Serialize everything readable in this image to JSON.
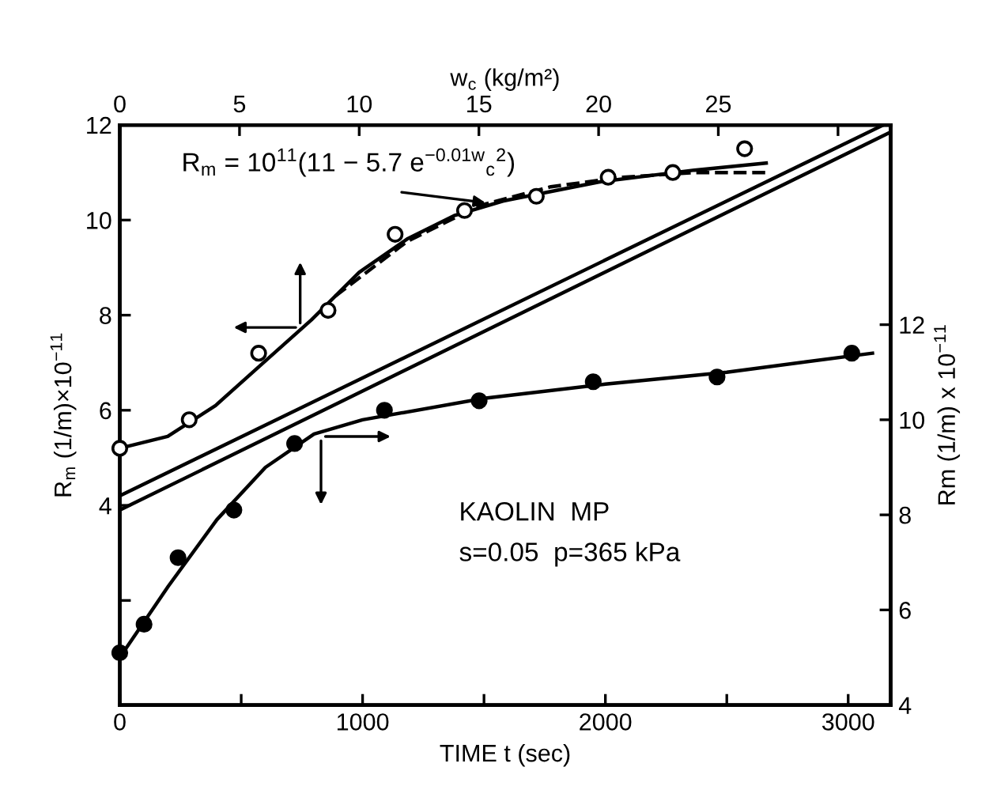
{
  "chart_data": {
    "type": "scatter",
    "xlabel": "TIME t (sec)",
    "x2label": "w$_{c}$ (kg/m²)",
    "ylabel": "R$_{m}$ (1/m)×10$^{−11}$",
    "y2label": "Rm (1/m) x 10$^{−11}$",
    "xlim": [
      0,
      3175
    ],
    "xticks": [
      0,
      {
        "value": 500,
        "label": null
      },
      1000,
      {
        "value": 1500,
        "label": null
      },
      2000,
      {
        "value": 2500,
        "label": null
      },
      3000
    ],
    "x2lim": [
      0,
      32.2
    ],
    "x2ticks": [
      0,
      5,
      10,
      15,
      20,
      25,
      {
        "value": 30,
        "label": null
      }
    ],
    "ylim": [
      -0.2,
      12
    ],
    "yticks": [
      {
        "value": 2,
        "label": null
      },
      4,
      6,
      8,
      10,
      12
    ],
    "y2lim": [
      4,
      16.2
    ],
    "y2ticks": [
      4,
      6,
      8,
      10,
      12
    ],
    "grid": false,
    "series": [
      {
        "axis": "x2",
        "color": "#000000",
        "marker": "circle",
        "x": [
          0,
          2.9,
          5.8,
          8.7,
          11.5,
          14.4,
          17.4,
          20.4,
          23.1,
          26.1
        ],
        "values": [
          5.2,
          5.8,
          7.2,
          8.1,
          9.7,
          10.2,
          10.5,
          10.9,
          11.0,
          11.5
        ]
      },
      {
        "type": "line",
        "axis": "x2",
        "color": "#000000",
        "marker": "none",
        "line_style": "solid",
        "x": [
          0,
          2,
          4,
          6,
          8,
          10,
          12,
          14,
          16,
          20,
          24,
          27
        ],
        "values": [
          5.2,
          5.45,
          6.1,
          7.0,
          7.9,
          8.9,
          9.6,
          10.1,
          10.4,
          10.8,
          11.05,
          11.2
        ]
      },
      {
        "type": "line",
        "axis": "x2",
        "color": "#000000",
        "marker": "none",
        "line_style": "dashed",
        "x": [
          9,
          12,
          15,
          18,
          21,
          24,
          27
        ],
        "values": [
          8.4,
          9.55,
          10.3,
          10.7,
          10.9,
          11.0,
          11.0
        ]
      },
      {
        "axis": "y2",
        "color": "#000000",
        "marker": "circle",
        "x": [
          0,
          100,
          240,
          470,
          720,
          1090,
          1480,
          1950,
          2460,
          3015
        ],
        "values": [
          5.1,
          5.7,
          7.1,
          8.1,
          9.5,
          10.2,
          10.4,
          10.8,
          10.9,
          11.4
        ]
      },
      {
        "type": "line",
        "axis": "y2",
        "color": "#000000",
        "marker": "none",
        "line_style": "solid",
        "x": [
          0,
          200,
          400,
          600,
          800,
          1000,
          1500,
          2000,
          2500,
          3100
        ],
        "values": [
          5.0,
          6.5,
          7.9,
          9.0,
          9.7,
          10.0,
          10.45,
          10.75,
          11.0,
          11.4
        ]
      },
      {
        "type": "line",
        "color": "#000000",
        "marker": "none",
        "line_style": "solid",
        "x": [
          0,
          3145
        ],
        "values": [
          4.2,
          12
        ]
      },
      {
        "type": "line",
        "color": "#000000",
        "marker": "none",
        "line_style": "solid",
        "x": [
          0,
          3175
        ],
        "values": [
          3.9,
          11.85
        ]
      }
    ],
    "annotations": [
      "R$_{m}$ = 10$^{11}$(11 − 5.7 e$^{−0.01w}$$_{c}$$^{2}$)",
      "KAOLIN  MP",
      "s=0.05  p=365 kPa"
    ]
  }
}
